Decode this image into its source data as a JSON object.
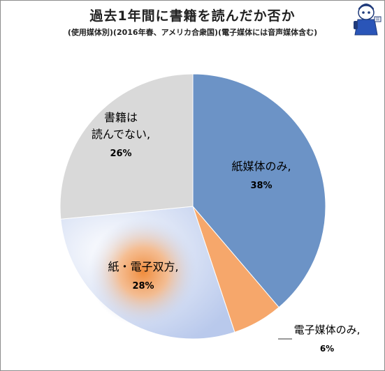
{
  "title": "過去1年間に書籍を読んだか否か",
  "subtitle": "(使用媒体別)(2016年春、アメリカ合衆国)(電子媒体には音声媒体含む)",
  "chart_data": {
    "type": "pie",
    "title": "過去1年間に書籍を読んだか否か",
    "subtitle": "(使用媒体別)(2016年春、アメリカ合衆国)(電子媒体には音声媒体含む)",
    "start": "12 o'clock",
    "direction": "clockwise",
    "slices": [
      {
        "label": "紙媒体のみ,",
        "value": 38,
        "value_label": "38%",
        "color": "#6c93c6"
      },
      {
        "label": "電子媒体のみ,",
        "value": 6,
        "value_label": "6%",
        "color": "#f6a76b"
      },
      {
        "label": "紙・電子双方,",
        "value": 28,
        "value_label": "28%",
        "color": "#c6d3ef",
        "glow": "#f08c3c"
      },
      {
        "label": "書籍は\n読んでない,",
        "value": 26,
        "value_label": "26%",
        "color": "#d9d9d9"
      }
    ],
    "legend": "none"
  },
  "mascot": {
    "icon": "mascot-icon"
  }
}
